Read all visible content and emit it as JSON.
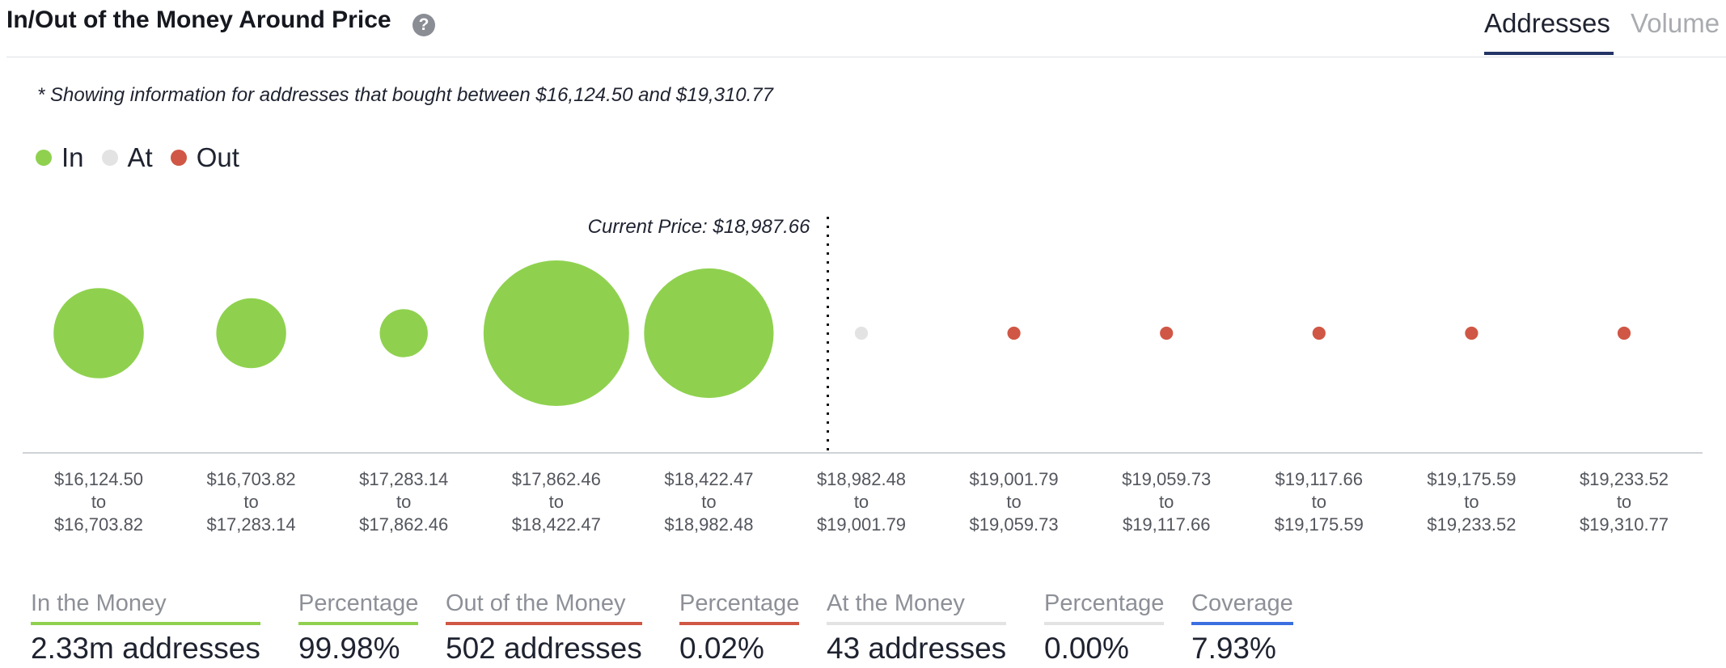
{
  "header": {
    "title": "In/Out of the Money Around Price",
    "help_icon": "question-circle-icon",
    "tabs": [
      {
        "label": "Addresses",
        "active": true
      },
      {
        "label": "Volume",
        "active": false
      }
    ]
  },
  "note": "* Showing information for addresses that bought between $16,124.50 and $19,310.77",
  "colors": {
    "in": "#8fd14f",
    "at": "#e3e3e3",
    "out": "#d05745",
    "coverage": "#3b6fe0"
  },
  "legend": [
    {
      "label": "In",
      "color": "#8fd14f"
    },
    {
      "label": "At",
      "color": "#e3e3e3"
    },
    {
      "label": "Out",
      "color": "#d05745"
    }
  ],
  "chart_data": {
    "type": "scatter",
    "subtype": "bubble",
    "current_price_label": "Current Price: $18,987.66",
    "current_price": 18987.66,
    "bins": [
      {
        "from": "$16,124.50",
        "to": "$16,703.82",
        "status": "in",
        "relative_size": 0.62
      },
      {
        "from": "$16,703.82",
        "to": "$17,283.14",
        "status": "in",
        "relative_size": 0.48
      },
      {
        "from": "$17,283.14",
        "to": "$17,862.46",
        "status": "in",
        "relative_size": 0.33
      },
      {
        "from": "$17,862.46",
        "to": "$18,422.47",
        "status": "in",
        "relative_size": 1.0
      },
      {
        "from": "$18,422.47",
        "to": "$18,982.48",
        "status": "in",
        "relative_size": 0.89
      },
      {
        "from": "$18,982.48",
        "to": "$19,001.79",
        "status": "at",
        "relative_size": 0.09
      },
      {
        "from": "$19,001.79",
        "to": "$19,059.73",
        "status": "out",
        "relative_size": 0.09
      },
      {
        "from": "$19,059.73",
        "to": "$19,117.66",
        "status": "out",
        "relative_size": 0.09
      },
      {
        "from": "$19,117.66",
        "to": "$19,175.59",
        "status": "out",
        "relative_size": 0.09
      },
      {
        "from": "$19,175.59",
        "to": "$19,233.52",
        "status": "out",
        "relative_size": 0.09
      },
      {
        "from": "$19,233.52",
        "to": "$19,310.77",
        "status": "out",
        "relative_size": 0.09
      }
    ],
    "range_connector": "to"
  },
  "stats": [
    {
      "label": "In the Money",
      "value": "2.33m addresses",
      "color": "#8fd14f"
    },
    {
      "label": "Percentage",
      "value": "99.98%",
      "color": "#8fd14f"
    },
    {
      "label": "Out of the Money",
      "value": "502 addresses",
      "color": "#d05745"
    },
    {
      "label": "Percentage",
      "value": "0.02%",
      "color": "#d05745"
    },
    {
      "label": "At the Money",
      "value": "43 addresses",
      "color": "#e3e3e3"
    },
    {
      "label": "Percentage",
      "value": "0.00%",
      "color": "#e3e3e3"
    },
    {
      "label": "Coverage",
      "value": "7.93%",
      "color": "#3b6fe0"
    }
  ]
}
